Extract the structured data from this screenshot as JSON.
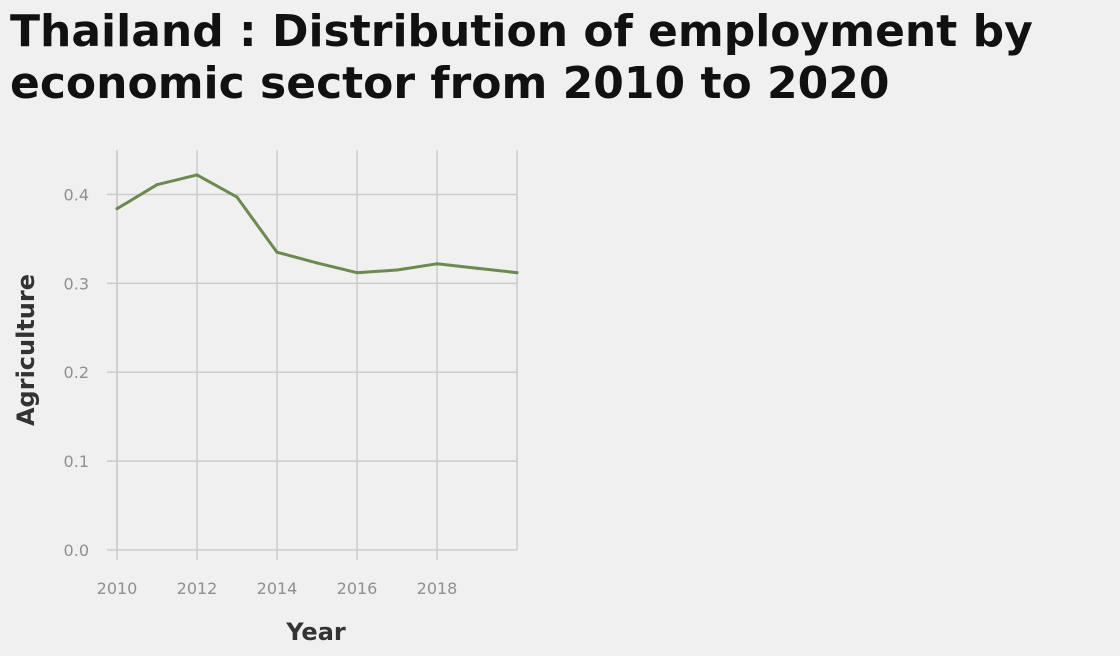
{
  "chart_data": {
    "type": "line",
    "title": "Thailand : Distribution of employment by economic sector from 2010 to 2020",
    "xlabel": "Year",
    "ylabel": "Agriculture",
    "x": [
      2010,
      2011,
      2012,
      2013,
      2014,
      2015,
      2016,
      2017,
      2018,
      2019,
      2020
    ],
    "series": [
      {
        "values": [
          0.384,
          0.411,
          0.422,
          0.397,
          0.335,
          0.323,
          0.312,
          0.315,
          0.322,
          0.317,
          0.312
        ]
      }
    ],
    "xlim": [
      2010,
      2020
    ],
    "ylim": [
      0,
      0.45
    ],
    "x_ticks": [
      2010,
      2012,
      2014,
      2016,
      2018
    ],
    "x_tick_labels": [
      "2010",
      "2012",
      "2014",
      "2016",
      "2018"
    ],
    "y_ticks": [
      0.0,
      0.1,
      0.2,
      0.3,
      0.4
    ],
    "y_tick_labels": [
      "0.0",
      "0.1",
      "0.2",
      "0.3",
      "0.4"
    ],
    "grid": true,
    "colors": {
      "line": "#6a8c4a",
      "grid": "#cccccc",
      "background": "#f0f0f0"
    }
  }
}
